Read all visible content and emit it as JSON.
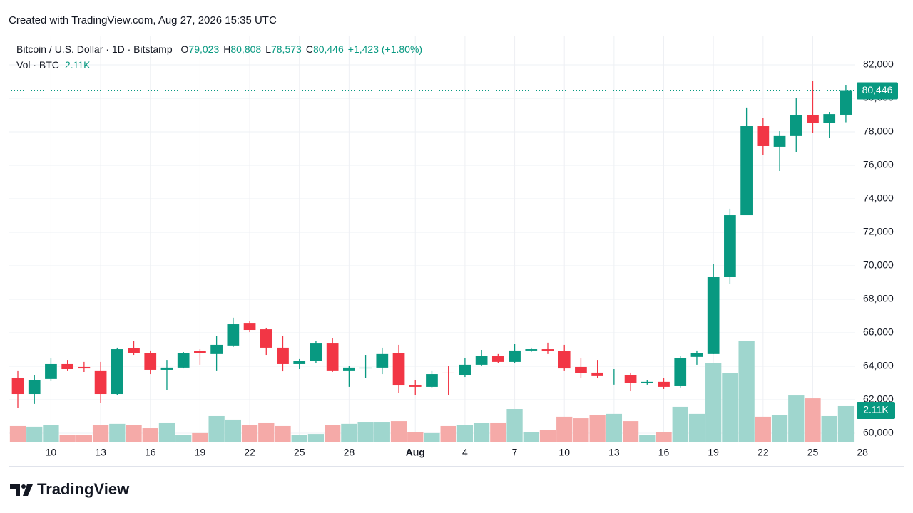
{
  "header": {
    "created": "Created with TradingView.com, Aug 27, 2026 15:35 UTC",
    "symbol": "Bitcoin / U.S. Dollar · 1D · Bitstamp",
    "ohlc_letters": [
      "O",
      "H",
      "L",
      "C"
    ],
    "ohlc_values": [
      "79,023",
      "80,808",
      "78,573",
      "80,446"
    ],
    "change": "+1,423 (+1.80%)",
    "vol_name": "Vol · BTC",
    "vol_value": "2.11K"
  },
  "footer": {
    "brand": "TradingView"
  },
  "chart_data": {
    "type": "candlestick",
    "up_color": "#089981",
    "down_color": "#f23645",
    "volume_up_color": "#9fd6ce",
    "volume_down_color": "#f5aaa8",
    "grid": true,
    "xlim": [
      -0.56,
      50.52
    ],
    "xticks": [
      {
        "value": 2,
        "label": "10"
      },
      {
        "value": 5,
        "label": "13"
      },
      {
        "value": 8,
        "label": "16"
      },
      {
        "value": 11,
        "label": "19"
      },
      {
        "value": 14,
        "label": "22"
      },
      {
        "value": 17,
        "label": "25"
      },
      {
        "value": 20,
        "label": "28"
      },
      {
        "value": 24,
        "label": "Aug"
      },
      {
        "value": 27,
        "label": "4"
      },
      {
        "value": 30,
        "label": "7"
      },
      {
        "value": 33,
        "label": "10"
      },
      {
        "value": 36,
        "label": "13"
      },
      {
        "value": 39,
        "label": "16"
      },
      {
        "value": 42,
        "label": "19"
      },
      {
        "value": 45,
        "label": "22"
      },
      {
        "value": 48,
        "label": "25"
      },
      {
        "value": 51,
        "label": "28"
      }
    ],
    "ylim": [
      59490,
      83745
    ],
    "yticks": [
      {
        "value": 60000,
        "label": "60,000"
      },
      {
        "value": 62000,
        "label": "62,000"
      },
      {
        "value": 64000,
        "label": "64,000"
      },
      {
        "value": 66000,
        "label": "66,000"
      },
      {
        "value": 68000,
        "label": "68,000"
      },
      {
        "value": 70000,
        "label": "70,000"
      },
      {
        "value": 72000,
        "label": "72,000"
      },
      {
        "value": 74000,
        "label": "74,000"
      },
      {
        "value": 76000,
        "label": "76,000"
      },
      {
        "value": 78000,
        "label": "78,000"
      },
      {
        "value": 80000,
        "label": "80,000"
      },
      {
        "value": 82000,
        "label": "82,000"
      }
    ],
    "open": [
      63320,
      62340,
      63240,
      64130,
      63960,
      63750,
      62340,
      65070,
      64770,
      63790,
      63920,
      64900,
      64730,
      65240,
      66550,
      66210,
      65110,
      64130,
      64300,
      65360,
      63750,
      63870,
      63920,
      64770,
      62850,
      62770,
      63620,
      63490,
      64090,
      64600,
      64260,
      64940,
      65020,
      64900,
      63960,
      63620,
      63450,
      63450,
      63020,
      63070,
      62810,
      64560,
      64730,
      69320,
      73020,
      78340,
      77110,
      77750,
      79020,
      78550,
      79023
    ],
    "high": [
      63750,
      63450,
      64510,
      64380,
      64260,
      64260,
      65110,
      65530,
      64940,
      64380,
      64850,
      65020,
      65830,
      66900,
      66680,
      66300,
      65790,
      64430,
      65490,
      65700,
      64040,
      64680,
      65110,
      65280,
      63150,
      63750,
      64040,
      64470,
      64980,
      64730,
      65320,
      65110,
      65410,
      65280,
      64470,
      64380,
      63830,
      63620,
      63190,
      63320,
      64600,
      64940,
      70090,
      73410,
      79450,
      78810,
      78040,
      80000,
      81060,
      79190,
      80808
    ],
    "low": [
      61530,
      61750,
      63110,
      63750,
      63660,
      61830,
      62260,
      64680,
      63530,
      62560,
      63870,
      64090,
      63750,
      65150,
      66040,
      64680,
      63700,
      63830,
      64210,
      63660,
      62770,
      63320,
      63530,
      62390,
      62260,
      62680,
      62260,
      63360,
      64040,
      64170,
      64170,
      64850,
      64730,
      63750,
      63280,
      63280,
      62900,
      62510,
      62900,
      62640,
      62730,
      64090,
      64730,
      68900,
      73020,
      76600,
      75660,
      76770,
      77920,
      77660,
      78573
    ],
    "close": [
      62340,
      63190,
      64130,
      63830,
      63870,
      62340,
      65020,
      64770,
      63790,
      63920,
      64770,
      64770,
      65280,
      66510,
      66170,
      65110,
      64130,
      64340,
      65360,
      63750,
      63920,
      63920,
      64730,
      62850,
      62770,
      63530,
      63580,
      64090,
      64600,
      64260,
      64940,
      65020,
      64900,
      63870,
      63580,
      63410,
      63490,
      63020,
      63070,
      62770,
      64510,
      64770,
      69320,
      73020,
      78340,
      77150,
      77750,
      79020,
      78550,
      79060,
      80446
    ],
    "volume": {
      "name": "Vol · BTC",
      "values": [
        930,
        890,
        970,
        420,
        380,
        1010,
        1060,
        1010,
        800,
        1140,
        420,
        510,
        1520,
        1310,
        970,
        1140,
        930,
        420,
        460,
        1010,
        1060,
        1180,
        1180,
        1220,
        550,
        510,
        930,
        1010,
        1100,
        1140,
        1940,
        550,
        680,
        1480,
        1390,
        1600,
        1650,
        1220,
        380,
        550,
        2070,
        1650,
        4680,
        4090,
        5990,
        1480,
        1560,
        2740,
        2570,
        1520,
        2110
      ]
    }
  }
}
